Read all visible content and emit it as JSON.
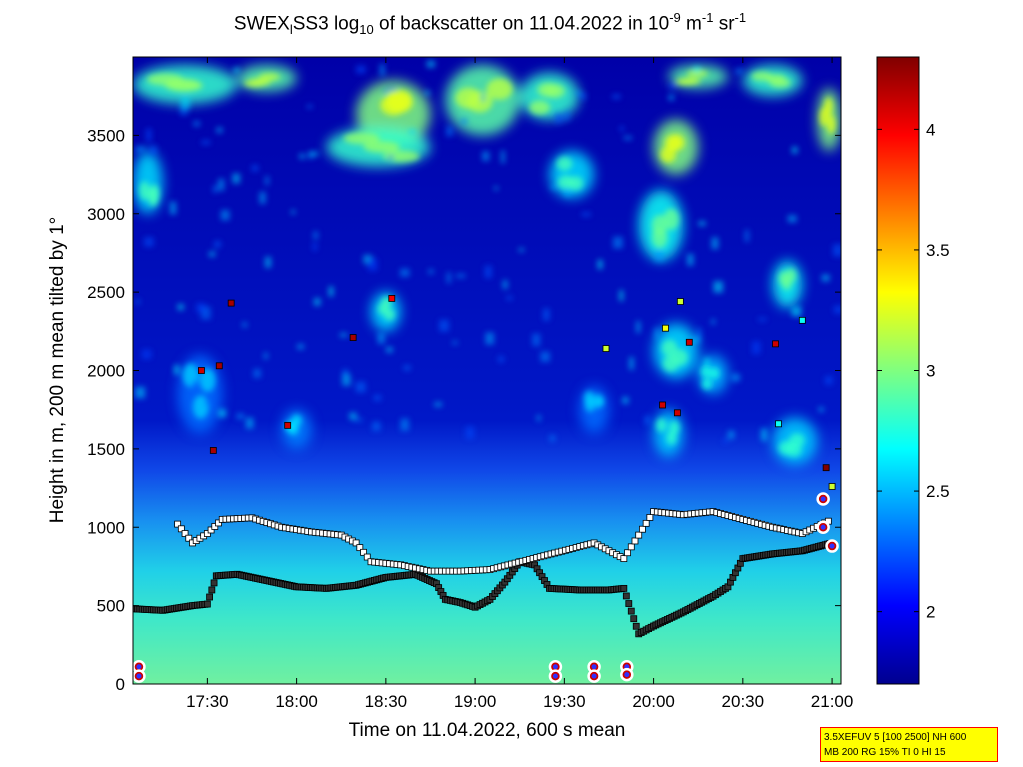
{
  "title": {
    "prefix": "SWEX",
    "sub1": "l",
    "mid1": "SS3 log",
    "sub2": "10",
    "mid2": " of backscatter on 11.04.2022 in 10",
    "sup1": "-9",
    "mid3": " m",
    "sup2": "-1",
    "mid4": " sr",
    "sup3": "-1"
  },
  "info_box": {
    "line1": "3.5XEFUV 5 [100 2500] NH 600",
    "line2": "MB 200 RG 15% TI 0 HI 15"
  },
  "chart_data": {
    "type": "heatmap",
    "xlabel": "Time on 11.04.2022, 600 s mean",
    "ylabel": "Height in m, 200 m mean tilted by 1°",
    "xlim": [
      "17:05",
      "21:03"
    ],
    "ylim": [
      0,
      4000
    ],
    "x_ticks": [
      "17:30",
      "18:00",
      "18:30",
      "19:00",
      "19:30",
      "20:00",
      "20:30",
      "21:00"
    ],
    "y_ticks": [
      "0",
      "500",
      "1000",
      "1500",
      "2000",
      "2500",
      "3000",
      "3500"
    ],
    "colorbar": {
      "range": [
        1.7,
        4.3
      ],
      "ticks": [
        "2",
        "2.5",
        "3",
        "3.5",
        "4"
      ],
      "colormap": "jet"
    },
    "layer_heights_m": {
      "surface_layer_top": [
        [
          "17:05",
          480
        ],
        [
          "17:15",
          470
        ],
        [
          "17:25",
          500
        ],
        [
          "17:30",
          510
        ],
        [
          "17:33",
          690
        ],
        [
          "17:40",
          700
        ],
        [
          "17:50",
          660
        ],
        [
          "18:00",
          620
        ],
        [
          "18:10",
          610
        ],
        [
          "18:20",
          630
        ],
        [
          "18:30",
          680
        ],
        [
          "18:40",
          700
        ],
        [
          "18:47",
          640
        ],
        [
          "18:50",
          540
        ],
        [
          "18:55",
          520
        ],
        [
          "19:00",
          490
        ],
        [
          "19:05",
          540
        ],
        [
          "19:10",
          650
        ],
        [
          "19:15",
          780
        ],
        [
          "19:20",
          760
        ],
        [
          "19:25",
          610
        ],
        [
          "19:35",
          600
        ],
        [
          "19:45",
          600
        ],
        [
          "19:50",
          610
        ],
        [
          "19:55",
          320
        ],
        [
          "20:00",
          370
        ],
        [
          "20:10",
          460
        ],
        [
          "20:20",
          560
        ],
        [
          "20:25",
          620
        ],
        [
          "20:30",
          800
        ],
        [
          "20:40",
          830
        ],
        [
          "20:50",
          850
        ],
        [
          "21:00",
          900
        ]
      ],
      "residual_layer_top": [
        [
          "17:20",
          1020
        ],
        [
          "17:25",
          900
        ],
        [
          "17:30",
          960
        ],
        [
          "17:35",
          1050
        ],
        [
          "17:45",
          1060
        ],
        [
          "17:55",
          1000
        ],
        [
          "18:05",
          970
        ],
        [
          "18:15",
          950
        ],
        [
          "18:20",
          900
        ],
        [
          "18:25",
          780
        ],
        [
          "18:35",
          760
        ],
        [
          "18:45",
          720
        ],
        [
          "18:55",
          720
        ],
        [
          "19:05",
          730
        ],
        [
          "19:40",
          900
        ],
        [
          "19:50",
          800
        ],
        [
          "20:00",
          1100
        ],
        [
          "20:10",
          1080
        ],
        [
          "20:20",
          1100
        ],
        [
          "20:30",
          1050
        ],
        [
          "20:40",
          1000
        ],
        [
          "20:50",
          960
        ],
        [
          "21:00",
          1050
        ]
      ],
      "cloud_points": [
        [
          "17:28",
          2000,
          4.1
        ],
        [
          "17:34",
          2030,
          4.2
        ],
        [
          "17:38",
          2430,
          4.2
        ],
        [
          "17:32",
          1490,
          4.2
        ],
        [
          "17:57",
          1650,
          4.1
        ],
        [
          "18:19",
          2210,
          4.2
        ],
        [
          "18:32",
          2460,
          4.0
        ],
        [
          "19:44",
          2140,
          3.2
        ],
        [
          "20:04",
          2270,
          3.3
        ],
        [
          "20:09",
          2440,
          3.2
        ],
        [
          "20:12",
          2180,
          4.1
        ],
        [
          "20:03",
          1780,
          4.1
        ],
        [
          "20:08",
          1730,
          4.1
        ],
        [
          "20:41",
          2170,
          4.1
        ],
        [
          "20:50",
          2320,
          2.7
        ],
        [
          "20:42",
          1660,
          2.7
        ],
        [
          "20:58",
          1380,
          4.3
        ],
        [
          "21:00",
          1260,
          3.2
        ]
      ]
    },
    "marked_points_ground": [
      [
        "17:07",
        110
      ],
      [
        "17:07",
        50
      ],
      [
        "19:27",
        110
      ],
      [
        "19:27",
        50
      ],
      [
        "19:40",
        110
      ],
      [
        "19:40",
        50
      ],
      [
        "19:51",
        110
      ],
      [
        "19:51",
        60
      ],
      [
        "20:57",
        1180
      ],
      [
        "20:57",
        1000
      ],
      [
        "21:00",
        880
      ]
    ]
  }
}
